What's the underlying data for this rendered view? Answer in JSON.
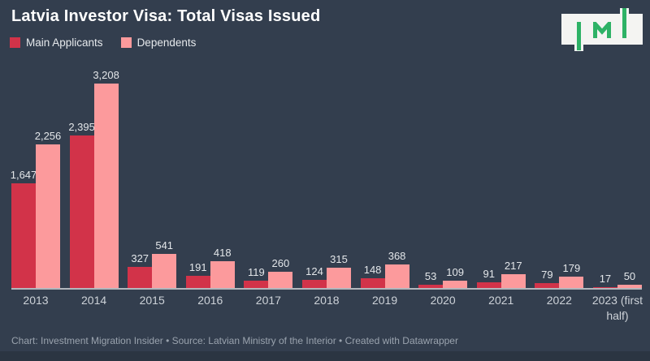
{
  "header": {
    "title": "Latvia Investor Visa: Total Visas Issued"
  },
  "legend": {
    "items": [
      {
        "label": "Main Applicants",
        "color": "#D23349"
      },
      {
        "label": "Dependents",
        "color": "#FC9A9C"
      }
    ]
  },
  "logo": {
    "text": "IMI",
    "green": "#2EB266",
    "box_color": "#F4F4F2"
  },
  "chart_data": {
    "type": "bar",
    "title": "Latvia Investor Visa: Total Visas Issued",
    "xlabel": "",
    "ylabel": "",
    "ylim": [
      0,
      3208
    ],
    "grid": false,
    "legend_position": "top-left",
    "categories": [
      "2013",
      "2014",
      "2015",
      "2016",
      "2017",
      "2018",
      "2019",
      "2020",
      "2021",
      "2022",
      "2023 (first half)"
    ],
    "xtick_labels": [
      "2013",
      "2014",
      "2015",
      "2016",
      "2017",
      "2018",
      "2019",
      "2020",
      "2021",
      "2022",
      "2023 (first\nhalf)"
    ],
    "series": [
      {
        "name": "Main Applicants",
        "color": "#D23349",
        "values": [
          1647,
          2395,
          327,
          191,
          119,
          124,
          148,
          53,
          91,
          79,
          17
        ],
        "labels": [
          "1,647",
          "2,395",
          "327",
          "191",
          "119",
          "124",
          "148",
          "53",
          "91",
          "79",
          "17"
        ]
      },
      {
        "name": "Dependents",
        "color": "#FC9A9C",
        "values": [
          2256,
          3208,
          541,
          418,
          260,
          315,
          368,
          109,
          217,
          179,
          50
        ],
        "labels": [
          "2,256",
          "3,208",
          "541",
          "418",
          "260",
          "315",
          "368",
          "109",
          "217",
          "179",
          "50"
        ]
      }
    ]
  },
  "footer": {
    "text": "Chart: Investment Migration Insider • Source: Latvian Ministry of the Interior • Created with Datawrapper"
  },
  "colors": {
    "background": "#333E4E",
    "bottom_band": "#2B3542",
    "axis_line": "#C9CDD1",
    "value_label": "#E3E6E9",
    "tick_label": "#CDD2D8",
    "footer_text": "#9AA3AE",
    "title": "#FFFFFF"
  }
}
